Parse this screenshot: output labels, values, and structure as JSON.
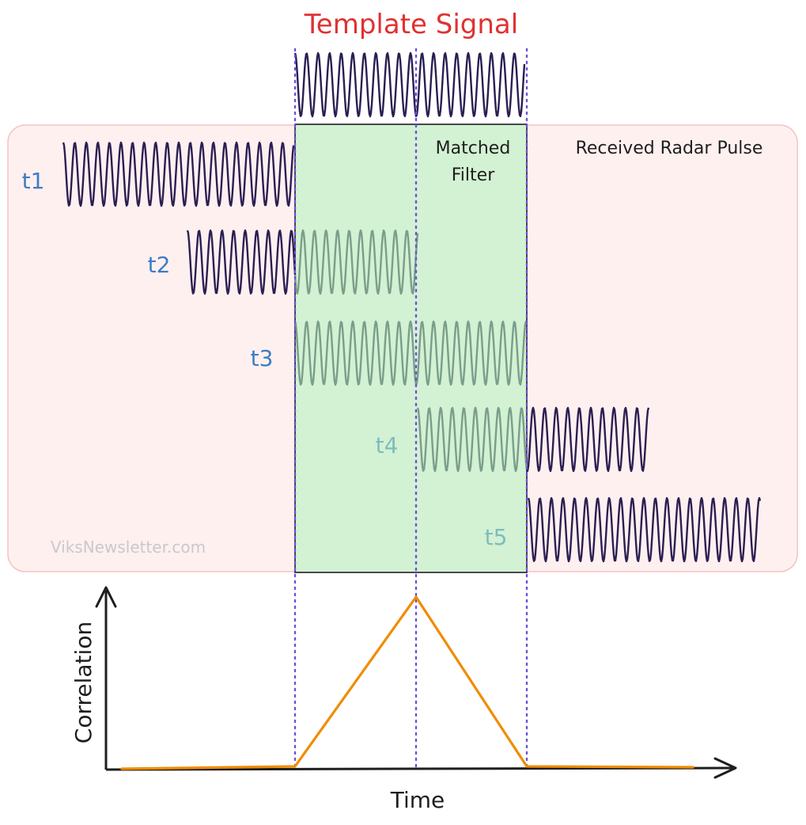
{
  "diagram": {
    "title": "Template Signal",
    "panel_label": "Received Radar Pulse",
    "filter_label_line1": "Matched",
    "filter_label_line2": "Filter",
    "watermark": "ViksNewsletter.com",
    "time_labels": [
      "t1",
      "t2",
      "t3",
      "t4",
      "t5"
    ],
    "y_axis_label": "Correlation",
    "x_axis_label": "Time"
  },
  "colors": {
    "title": "#e03131",
    "panel_fill": "#fff0f0",
    "panel_stroke": "#f5c2c2",
    "filter_fill": "#d3f1d3",
    "filter_stroke": "#1e1e1e",
    "wave": "#2b1e52",
    "wave_inside": "#7a9e8a",
    "guide": "#6c4fe0",
    "time_label": "#3b7dc4",
    "time_label_faded": "#7dbdbd",
    "watermark": "#c9c9c9",
    "correlation": "#f08c00",
    "axis": "#1e1e1e"
  }
}
